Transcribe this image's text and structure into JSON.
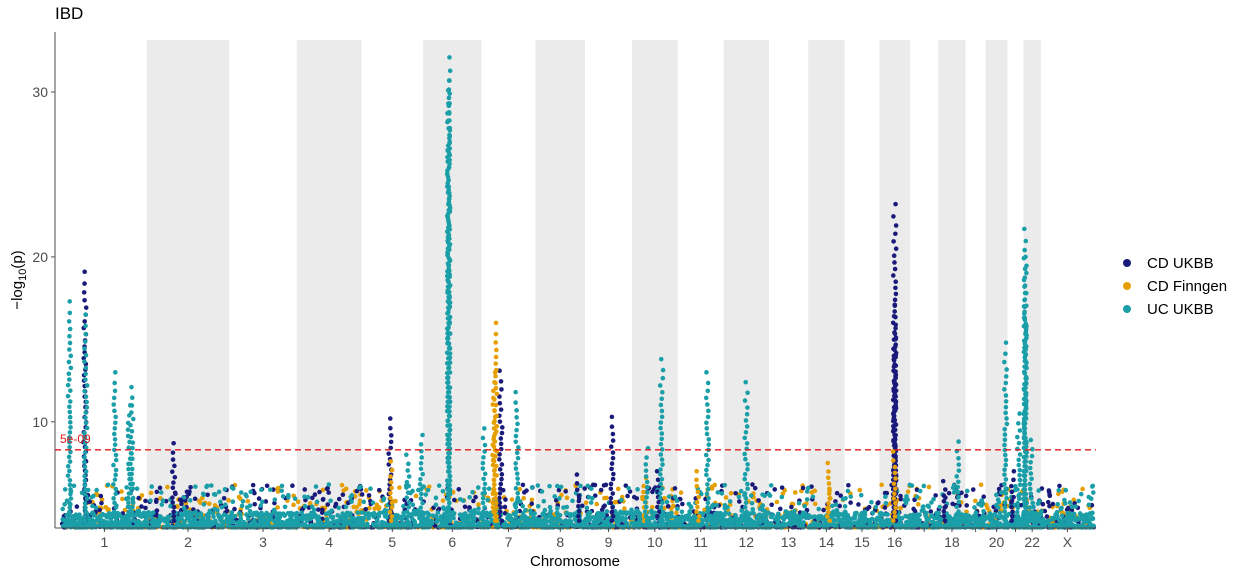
{
  "chart_data": {
    "type": "scatter",
    "title": "IBD",
    "xlabel": "Chromosome",
    "ylabel_prefix": "−log",
    "ylabel_sub": "10",
    "ylabel_suffix": "(p)",
    "ylim": [
      3,
      33
    ],
    "yticks": [
      10,
      20,
      30
    ],
    "threshold": {
      "label": "5e-09",
      "value": 8.3,
      "color": "#e31a1c"
    },
    "legend_position": "right",
    "grid": false,
    "chromosomes": [
      {
        "label": "1",
        "start": 0,
        "end": 249,
        "shaded": false
      },
      {
        "label": "2",
        "start": 249,
        "end": 491,
        "shaded": true
      },
      {
        "label": "3",
        "start": 491,
        "end": 689,
        "shaded": false
      },
      {
        "label": "4",
        "start": 689,
        "end": 879,
        "shaded": true
      },
      {
        "label": "5",
        "start": 879,
        "end": 1060,
        "shaded": false
      },
      {
        "label": "6",
        "start": 1060,
        "end": 1231,
        "shaded": true
      },
      {
        "label": "7",
        "start": 1231,
        "end": 1390,
        "shaded": false
      },
      {
        "label": "8",
        "start": 1390,
        "end": 1535,
        "shaded": true
      },
      {
        "label": "9",
        "start": 1535,
        "end": 1673,
        "shaded": false
      },
      {
        "label": "10",
        "start": 1673,
        "end": 1807,
        "shaded": true
      },
      {
        "label": "11",
        "start": 1807,
        "end": 1942,
        "shaded": false
      },
      {
        "label": "12",
        "start": 1942,
        "end": 2075,
        "shaded": true
      },
      {
        "label": "13",
        "start": 2075,
        "end": 2190,
        "shaded": false
      },
      {
        "label": "14",
        "start": 2190,
        "end": 2297,
        "shaded": true
      },
      {
        "label": "15",
        "start": 2297,
        "end": 2399,
        "shaded": false
      },
      {
        "label": "16",
        "start": 2399,
        "end": 2489,
        "shaded": true
      },
      {
        "label": "",
        "start": 2489,
        "end": 2572,
        "shaded": false
      },
      {
        "label": "18",
        "start": 2572,
        "end": 2652,
        "shaded": true
      },
      {
        "label": "",
        "start": 2652,
        "end": 2711,
        "shaded": false
      },
      {
        "label": "20",
        "start": 2711,
        "end": 2775,
        "shaded": true
      },
      {
        "label": "",
        "start": 2775,
        "end": 2822,
        "shaded": false
      },
      {
        "label": "22",
        "start": 2822,
        "end": 2873,
        "shaded": true
      },
      {
        "label": "X",
        "start": 2873,
        "end": 3029,
        "shaded": false
      }
    ],
    "series": [
      {
        "name": "CD UKBB",
        "color": "#1a1a7a",
        "peaks": [
          {
            "x": 67,
            "y": 19.1
          },
          {
            "x": 328,
            "y": 8.7
          },
          {
            "x": 963,
            "y": 10.2
          },
          {
            "x": 1288,
            "y": 13.1
          },
          {
            "x": 1515,
            "y": 6.8
          },
          {
            "x": 1615,
            "y": 10.3
          },
          {
            "x": 1750,
            "y": 7.0
          },
          {
            "x": 2590,
            "y": 6.4
          },
          {
            "x": 2444,
            "y": 23.2
          },
          {
            "x": 2444,
            "y": 17.1
          },
          {
            "x": 2444,
            "y": 15.1
          },
          {
            "x": 2444,
            "y": 14.0
          },
          {
            "x": 2790,
            "y": 7.0
          }
        ]
      },
      {
        "name": "CD Finngen",
        "color": "#e69f00",
        "peaks": [
          {
            "x": 1272,
            "y": 16.0
          },
          {
            "x": 1268,
            "y": 13.0
          },
          {
            "x": 965,
            "y": 7.6
          },
          {
            "x": 1866,
            "y": 7.0
          },
          {
            "x": 2250,
            "y": 7.5
          },
          {
            "x": 2444,
            "y": 8.2
          },
          {
            "x": 1710,
            "y": 6.6
          }
        ]
      },
      {
        "name": "UC UKBB",
        "color": "#1a9ea8",
        "peaks": [
          {
            "x": 22,
            "y": 17.3
          },
          {
            "x": 70,
            "y": 16.5
          },
          {
            "x": 155,
            "y": 13.0
          },
          {
            "x": 205,
            "y": 12.1
          },
          {
            "x": 198,
            "y": 11.0
          },
          {
            "x": 1135,
            "y": 32.1
          },
          {
            "x": 1135,
            "y": 30.7
          },
          {
            "x": 1135,
            "y": 30.1
          },
          {
            "x": 1238,
            "y": 9.6
          },
          {
            "x": 1335,
            "y": 11.8
          },
          {
            "x": 1760,
            "y": 13.8
          },
          {
            "x": 1716,
            "y": 8.4
          },
          {
            "x": 1895,
            "y": 13.0
          },
          {
            "x": 2008,
            "y": 12.4
          },
          {
            "x": 2770,
            "y": 14.8
          },
          {
            "x": 2827,
            "y": 21.7
          },
          {
            "x": 2827,
            "y": 20.0
          },
          {
            "x": 2827,
            "y": 17.0
          },
          {
            "x": 2808,
            "y": 10.5
          },
          {
            "x": 2845,
            "y": 8.9
          },
          {
            "x": 2628,
            "y": 8.8
          },
          {
            "x": 1055,
            "y": 9.2
          },
          {
            "x": 1015,
            "y": 8.0
          }
        ]
      }
    ]
  }
}
